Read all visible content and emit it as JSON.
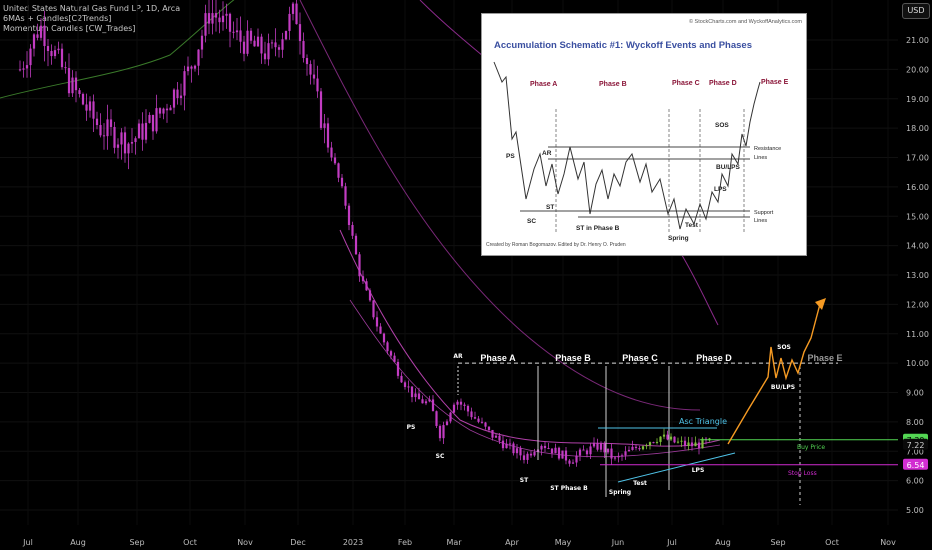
{
  "legend": {
    "line1": "United States Natural Gas Fund LP, 1D, Arca",
    "line2": "6MAs + Candles[C2Trends]",
    "line3": "Momentum Candles [CW_Trades]"
  },
  "currency_button": "USD",
  "colors": {
    "background": "#000000",
    "candle": "#c23cc2",
    "candle_green": "#5a8a2a",
    "ma_green": "#3a7a2a",
    "ma_pink": "#b040a8",
    "projection": "#f59a23",
    "triangle": "#4fc3e8",
    "buy_line": "#53d653",
    "stop_line": "#d02ad0"
  },
  "chart_data": {
    "type": "candlestick",
    "x_ticks": [
      "Jul",
      "Aug",
      "Sep",
      "Oct",
      "Nov",
      "Dec",
      "2023",
      "Feb",
      "Mar",
      "Apr",
      "May",
      "Jun",
      "Jul",
      "Aug",
      "Sep",
      "Oct",
      "Nov"
    ],
    "y_ticks": [
      "21.00",
      "20.00",
      "19.00",
      "18.00",
      "17.00",
      "16.00",
      "15.00",
      "14.00",
      "13.00",
      "12.00",
      "11.00",
      "10.00",
      "9.00",
      "8.00",
      "7.00",
      "6.00",
      "5.00"
    ],
    "ylim": [
      4.5,
      22.5
    ],
    "price_labels": {
      "buy": "7.39",
      "current": "7.22",
      "stop": "6.54"
    },
    "levels": {
      "buy_price": 7.39,
      "stop_loss": 6.54,
      "phase_e_line": 10.0
    },
    "annotations": {
      "phases": [
        "Phase A",
        "Phase B",
        "Phase C",
        "Phase D",
        "Phase E"
      ],
      "events": [
        "PS",
        "SC",
        "AR",
        "ST",
        "ST Phase B",
        "Spring",
        "Test",
        "LPS",
        "SOS",
        "BU/LPS"
      ],
      "triangle_label": "Asc Triangle",
      "buy_price_label": "Buy Price",
      "stop_loss_label": "Stop Loss"
    }
  },
  "inset": {
    "credit": "© StockCharts.com and WyckoffAnalytics.com",
    "title": "Accumulation Schematic #1: Wyckoff Events and Phases",
    "phases": [
      "Phase A",
      "Phase B",
      "Phase C",
      "Phase D",
      "Phase E"
    ],
    "labels": {
      "ps": "PS",
      "ar": "AR",
      "st": "ST",
      "sc": "SC",
      "st_b": "ST in Phase B",
      "spring": "Spring",
      "test": "Test",
      "sos": "SOS",
      "bu_lps": "BU/LPS",
      "lps": "LPS",
      "resistance1": "Resistance",
      "resistance2": "Lines",
      "support1": "Support",
      "support2": "Lines"
    },
    "footer": "Created by Roman Bogomazov. Edited by Dr. Henry O. Pruden"
  }
}
